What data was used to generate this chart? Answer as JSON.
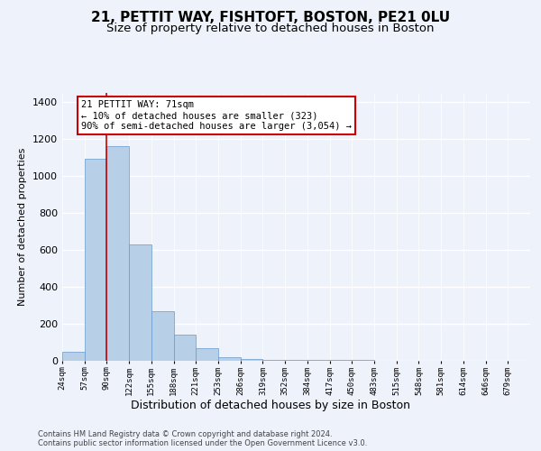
{
  "title1": "21, PETTIT WAY, FISHTOFT, BOSTON, PE21 0LU",
  "title2": "Size of property relative to detached houses in Boston",
  "xlabel": "Distribution of detached houses by size in Boston",
  "ylabel": "Number of detached properties",
  "footer1": "Contains HM Land Registry data © Crown copyright and database right 2024.",
  "footer2": "Contains public sector information licensed under the Open Government Licence v3.0.",
  "annotation_line1": "21 PETTIT WAY: 71sqm",
  "annotation_line2": "← 10% of detached houses are smaller (323)",
  "annotation_line3": "90% of semi-detached houses are larger (3,054) →",
  "bar_values": [
    50,
    1090,
    1160,
    630,
    270,
    140,
    70,
    20,
    10,
    3,
    3,
    3,
    3,
    3,
    2,
    2,
    2,
    0,
    0,
    0
  ],
  "categories": [
    "24sqm",
    "57sqm",
    "90sqm",
    "122sqm",
    "155sqm",
    "188sqm",
    "221sqm",
    "253sqm",
    "286sqm",
    "319sqm",
    "352sqm",
    "384sqm",
    "417sqm",
    "450sqm",
    "483sqm",
    "515sqm",
    "548sqm",
    "581sqm",
    "614sqm",
    "646sqm",
    "679sqm"
  ],
  "bar_color": "#b8cfe8",
  "bar_edge_color": "#6699cc",
  "vline_x": 2,
  "vline_color": "#cc0000",
  "ylim": [
    0,
    1450
  ],
  "yticks": [
    0,
    200,
    400,
    600,
    800,
    1000,
    1200,
    1400
  ],
  "background_color": "#eef2fb",
  "plot_bg_color": "#eef2fb",
  "grid_color": "#ffffff",
  "annotation_box_color": "#ffffff",
  "annotation_box_edge": "#cc0000",
  "title1_fontsize": 11,
  "title2_fontsize": 9.5,
  "annotation_fontsize": 7.5,
  "ylabel_fontsize": 8,
  "xlabel_fontsize": 9,
  "footer_fontsize": 6,
  "ytick_fontsize": 8,
  "xtick_fontsize": 6.5
}
